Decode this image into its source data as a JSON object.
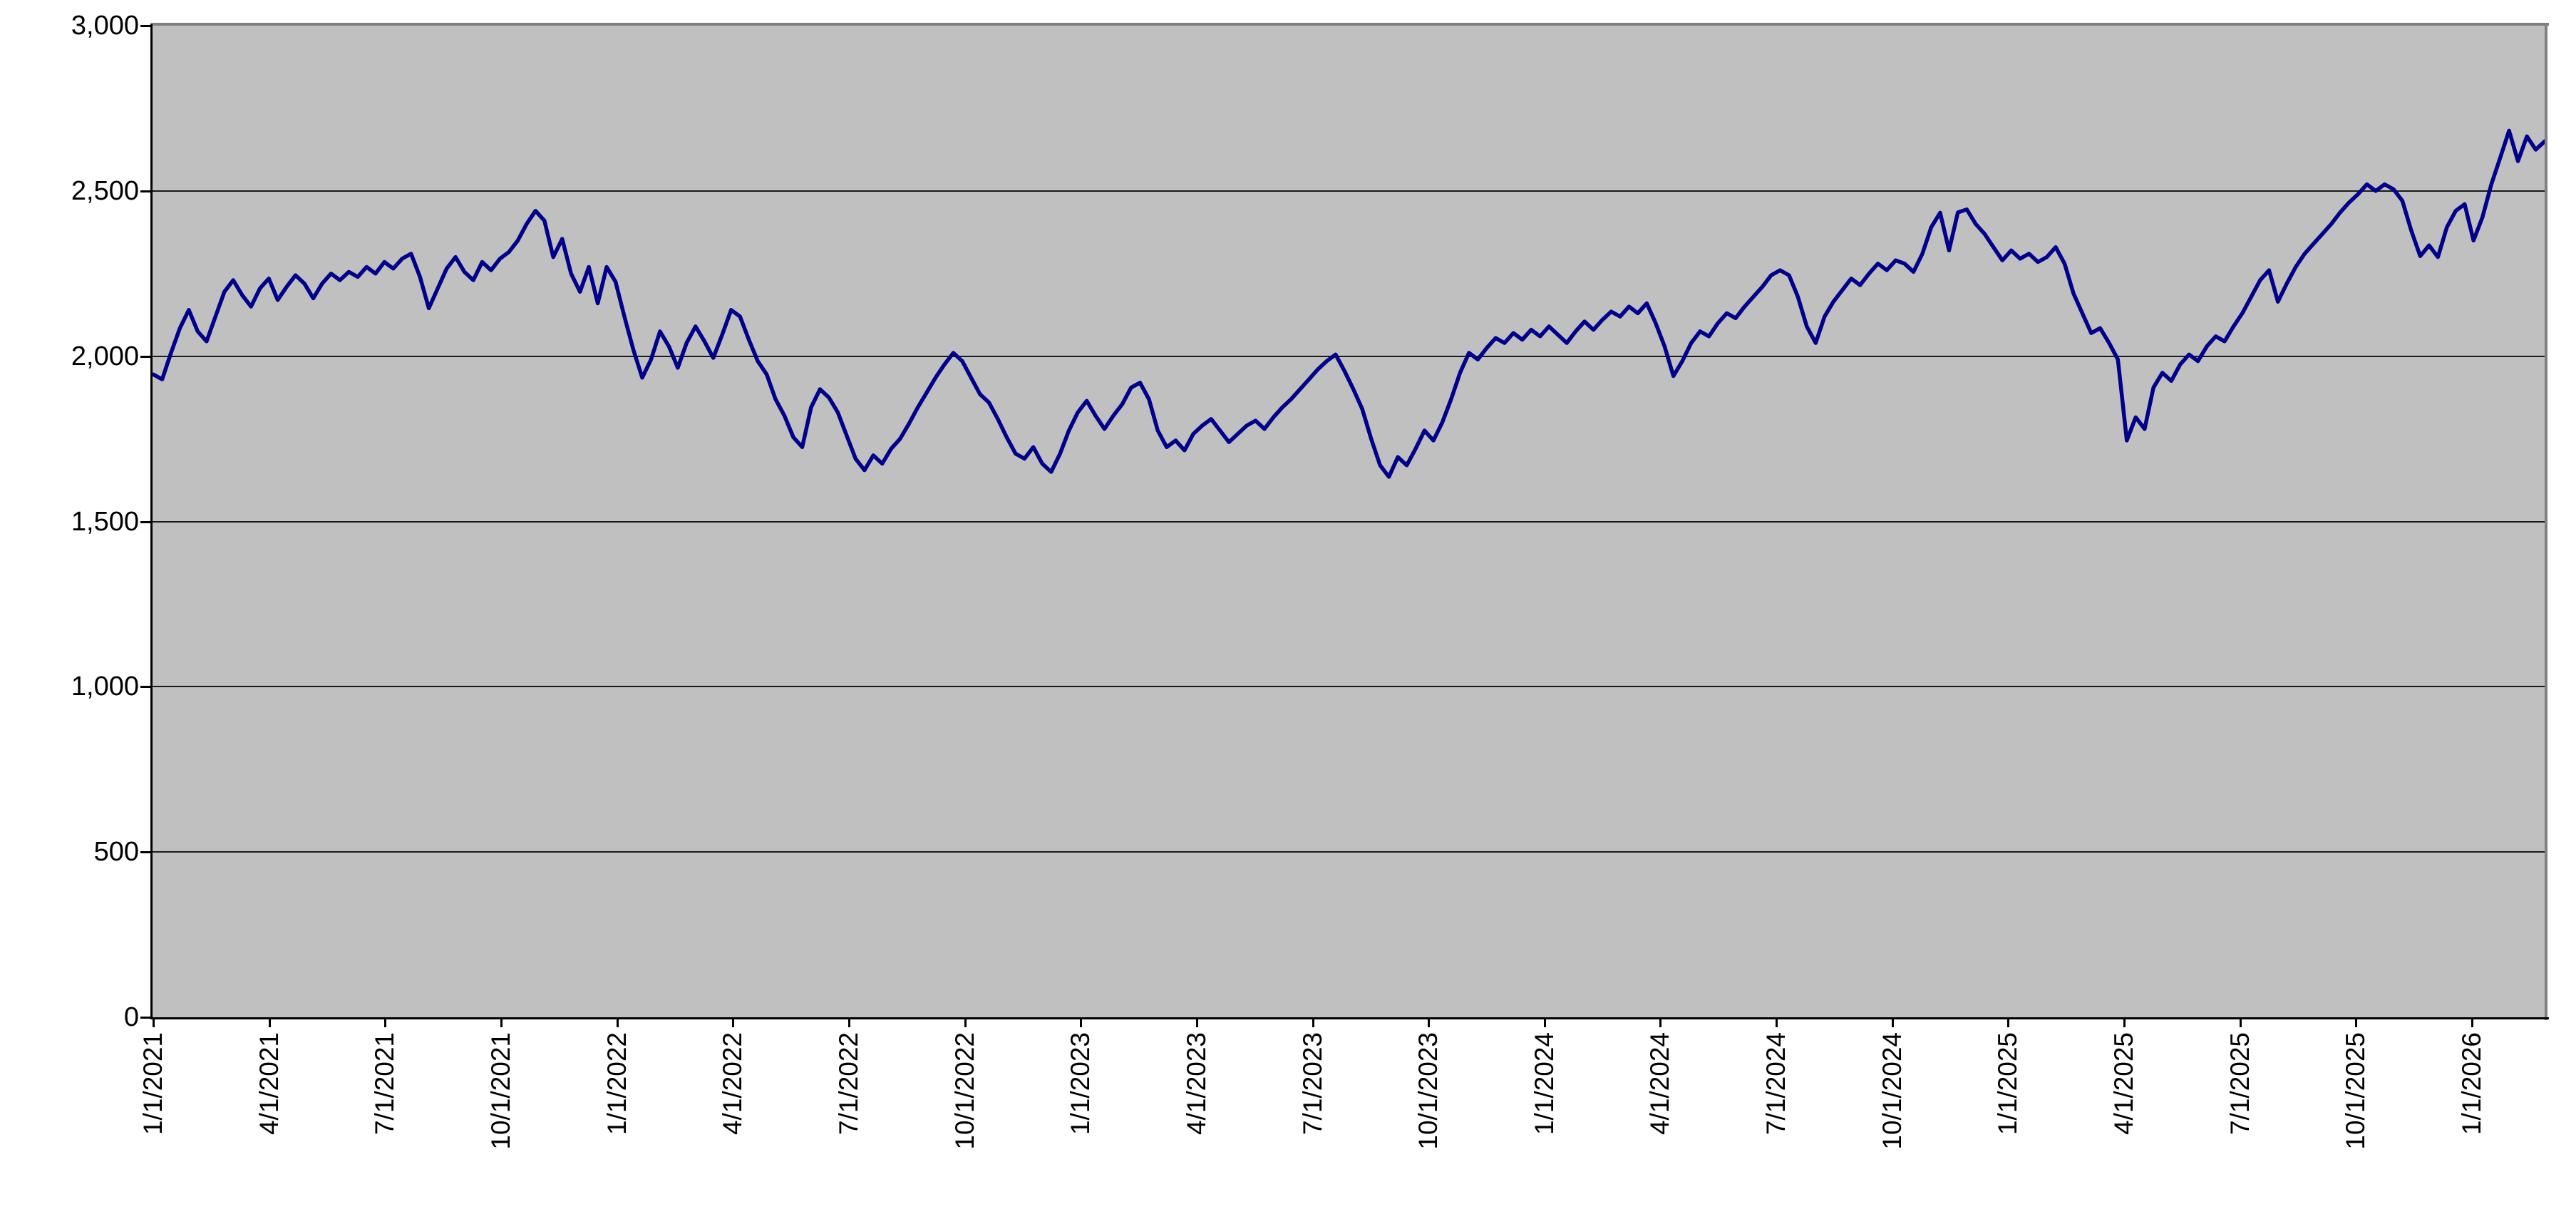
{
  "chart_data": {
    "type": "line",
    "title": "",
    "xlabel": "",
    "ylabel": "",
    "legend": "none",
    "grid": "horizontal",
    "ylim": [
      0,
      3000
    ],
    "y_tick_values": [
      0,
      500,
      1000,
      1500,
      2000,
      2500,
      3000
    ],
    "y_tick_labels": [
      "0",
      "500",
      "1,000",
      "1,500",
      "2,000",
      "2,500",
      "3,000"
    ],
    "x_tick_labels": [
      "1/1/2021",
      "4/1/2021",
      "7/1/2021",
      "10/1/2021",
      "1/1/2022",
      "4/1/2022",
      "7/1/2022",
      "10/1/2022",
      "1/1/2023",
      "4/1/2023",
      "7/1/2023",
      "10/1/2023",
      "1/1/2024",
      "4/1/2024",
      "7/1/2024",
      "10/1/2024",
      "1/1/2025",
      "4/1/2025",
      "7/1/2025",
      "10/1/2025",
      "1/1/2026"
    ],
    "x_range_labels": {
      "first": "1/1/2021",
      "last": "1/1/2026"
    },
    "point_interval": "weekly",
    "colors": {
      "line": "#00008B",
      "plot_background": "#C0C0C0",
      "gridline": "#1a1a1a",
      "axis": "#000000",
      "frame_border": "#808080",
      "page_background": "#FFFFFF",
      "tick_text": "#000000"
    },
    "series": [
      {
        "values": [
          1945,
          1930,
          2010,
          2085,
          2140,
          2075,
          2045,
          2120,
          2195,
          2230,
          2185,
          2150,
          2205,
          2235,
          2170,
          2210,
          2245,
          2220,
          2175,
          2220,
          2250,
          2230,
          2255,
          2240,
          2270,
          2250,
          2285,
          2265,
          2295,
          2310,
          2240,
          2145,
          2205,
          2265,
          2300,
          2255,
          2230,
          2285,
          2260,
          2295,
          2315,
          2350,
          2400,
          2440,
          2410,
          2300,
          2355,
          2250,
          2195,
          2270,
          2160,
          2270,
          2225,
          2120,
          2020,
          1935,
          1990,
          2075,
          2030,
          1965,
          2040,
          2090,
          2045,
          1995,
          2065,
          2140,
          2120,
          2050,
          1985,
          1945,
          1870,
          1820,
          1755,
          1725,
          1845,
          1900,
          1875,
          1830,
          1760,
          1690,
          1655,
          1700,
          1675,
          1720,
          1750,
          1795,
          1845,
          1890,
          1935,
          1975,
          2010,
          1985,
          1935,
          1885,
          1860,
          1810,
          1755,
          1705,
          1690,
          1725,
          1675,
          1650,
          1705,
          1775,
          1830,
          1865,
          1820,
          1780,
          1820,
          1855,
          1905,
          1920,
          1870,
          1775,
          1725,
          1745,
          1715,
          1765,
          1790,
          1810,
          1775,
          1740,
          1765,
          1790,
          1805,
          1780,
          1815,
          1845,
          1870,
          1900,
          1930,
          1960,
          1985,
          2005,
          1955,
          1900,
          1840,
          1750,
          1670,
          1635,
          1695,
          1670,
          1720,
          1775,
          1745,
          1800,
          1870,
          1950,
          2010,
          1990,
          2025,
          2055,
          2040,
          2070,
          2050,
          2080,
          2060,
          2090,
          2065,
          2040,
          2075,
          2105,
          2080,
          2110,
          2135,
          2120,
          2150,
          2130,
          2160,
          2100,
          2030,
          1940,
          1985,
          2040,
          2075,
          2060,
          2100,
          2130,
          2115,
          2150,
          2180,
          2210,
          2245,
          2260,
          2245,
          2180,
          2090,
          2040,
          2120,
          2165,
          2200,
          2235,
          2215,
          2250,
          2280,
          2260,
          2290,
          2280,
          2255,
          2310,
          2390,
          2434,
          2320,
          2435,
          2444,
          2400,
          2370,
          2330,
          2290,
          2320,
          2295,
          2310,
          2285,
          2300,
          2330,
          2280,
          2190,
          2130,
          2070,
          2085,
          2040,
          1990,
          1745,
          1815,
          1780,
          1905,
          1950,
          1925,
          1975,
          2005,
          1985,
          2030,
          2060,
          2045,
          2090,
          2130,
          2180,
          2230,
          2260,
          2165,
          2220,
          2270,
          2310,
          2340,
          2370,
          2400,
          2435,
          2465,
          2490,
          2520,
          2500,
          2520,
          2505,
          2470,
          2380,
          2303,
          2335,
          2300,
          2390,
          2440,
          2460,
          2350,
          2420,
          2520,
          2600,
          2682,
          2590,
          2665,
          2625,
          2650
        ]
      }
    ]
  }
}
